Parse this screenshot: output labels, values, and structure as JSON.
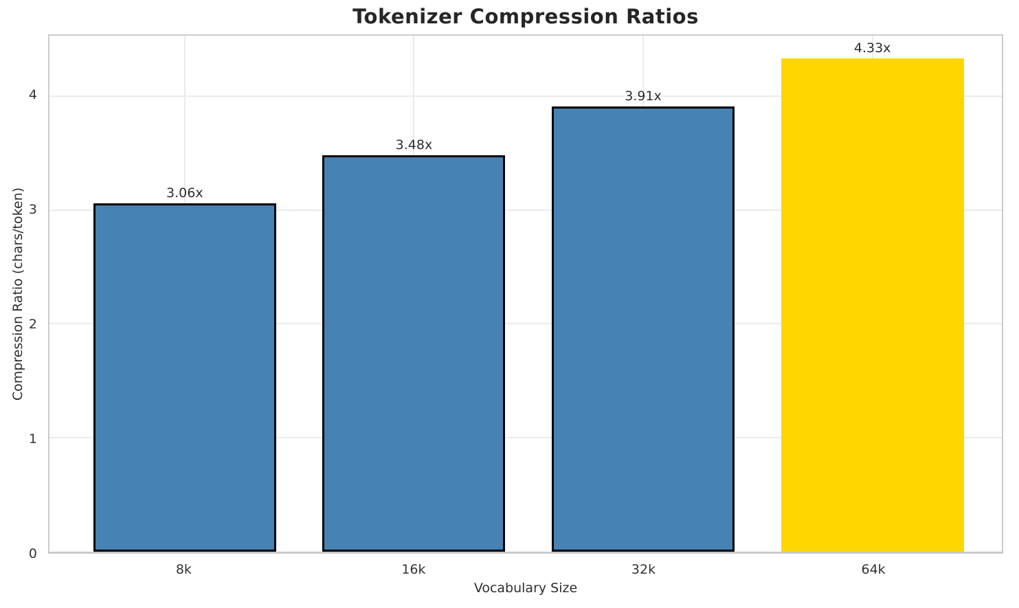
{
  "chart_data": {
    "type": "bar",
    "title": "Tokenizer Compression Ratios",
    "xlabel": "Vocabulary Size",
    "ylabel": "Compression Ratio (chars/token)",
    "categories": [
      "8k",
      "16k",
      "32k",
      "64k"
    ],
    "values": [
      3.06,
      3.48,
      3.91,
      4.33
    ],
    "bar_labels": [
      "3.06x",
      "3.48x",
      "3.91x",
      "4.33x"
    ],
    "bar_colors": [
      "#4682B4",
      "#4682B4",
      "#4682B4",
      "#FFD700"
    ],
    "bar_edge_colors": [
      "#000000",
      "#000000",
      "#000000",
      "none"
    ],
    "ylim": [
      0,
      4.53
    ],
    "yticks": [
      0,
      1,
      2,
      3,
      4
    ],
    "grid": true,
    "legend": "none",
    "background": "#ffffff"
  },
  "style": {
    "accent_blue": "#4682B4",
    "highlight_gold": "#FFD700",
    "grid_color": "#ebebeb",
    "spine_color": "#cccccc",
    "text_color": "#262626"
  }
}
